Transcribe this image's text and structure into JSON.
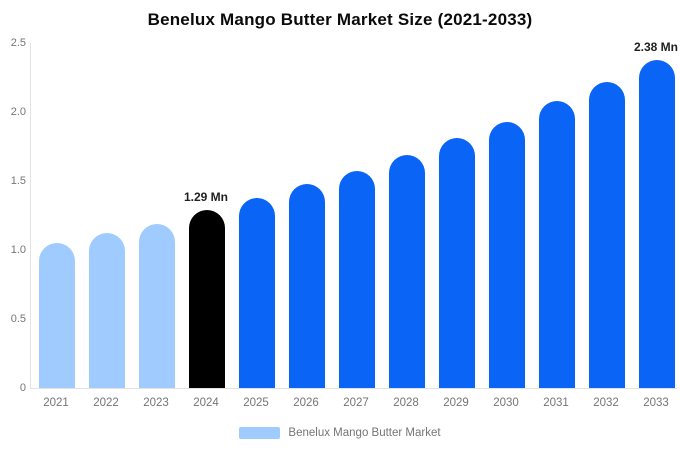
{
  "chart_data": {
    "type": "bar",
    "title": "Benelux Mango Butter Market Size (2021-2033)",
    "categories": [
      "2021",
      "2022",
      "2023",
      "2024",
      "2025",
      "2026",
      "2027",
      "2028",
      "2029",
      "2030",
      "2031",
      "2032",
      "2033"
    ],
    "values": [
      1.05,
      1.12,
      1.19,
      1.29,
      1.38,
      1.48,
      1.57,
      1.69,
      1.81,
      1.93,
      2.08,
      2.22,
      2.38
    ],
    "unit": "Mn",
    "xlabel": "",
    "ylabel": "",
    "ylim": [
      0,
      2.5
    ],
    "yticks": [
      0,
      0.5,
      1.0,
      1.5,
      2.0,
      2.5
    ],
    "ytick_labels": [
      "0",
      "0.5",
      "1.0",
      "1.5",
      "2.0",
      "2.5"
    ],
    "grid": "off",
    "bar_roles": [
      "historical",
      "historical",
      "historical",
      "base_year",
      "forecast",
      "forecast",
      "forecast",
      "forecast",
      "forecast",
      "forecast",
      "forecast",
      "forecast",
      "forecast"
    ],
    "series_colors": {
      "historical": "#9fcbff",
      "base_year": "#000000",
      "forecast": "#0a64f5"
    },
    "annotations": [
      {
        "index": 3,
        "text": "1.29 Mn"
      },
      {
        "index": 12,
        "text": "2.38 Mn"
      }
    ],
    "legend_position": "bottom",
    "legend_label": "Benelux Mango Butter Market",
    "legend_swatch_role": "historical",
    "axis_color": "#e3e3e3",
    "tick_text_color": "#757575",
    "annotation_text_color": "#1f1f1f",
    "title_color": "#0a0a0a",
    "background_color": "#ffffff"
  }
}
